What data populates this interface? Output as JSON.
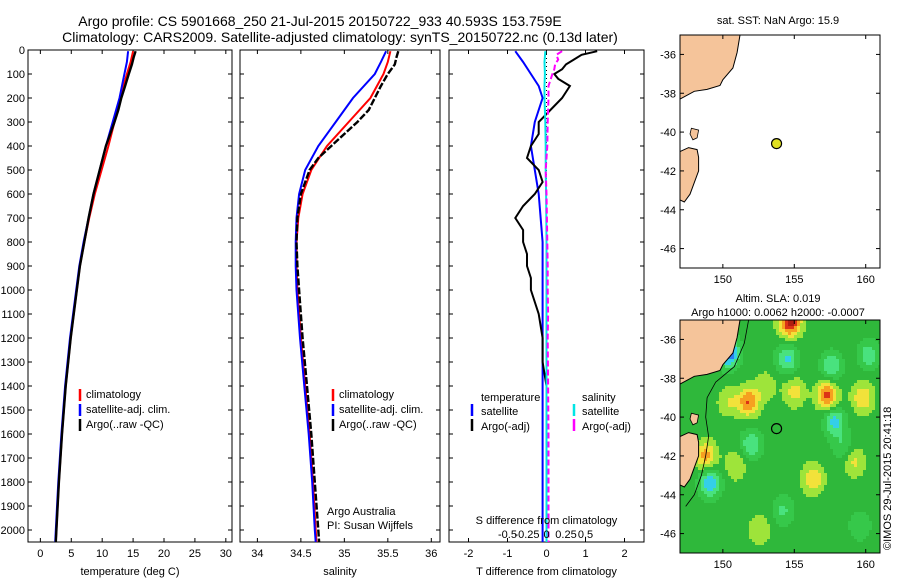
{
  "header": {
    "title_line1": "Argo profile: CS 5901668_250 21-Jul-2015 20150722_933 40.593S 153.759E",
    "title_line2": "Climatology: CARS2009. Satellite-adjusted climatology: synTS_20150722.nc (0.13d later)"
  },
  "copyright": "©IMOS 29-Jul-2015 20:41:18",
  "colors": {
    "climatology": "#ff0000",
    "satellite": "#0000ff",
    "argo": "#000000",
    "sal_satellite": "#00e5e5",
    "sal_argo": "#ff00ff",
    "land": "#f5c49a",
    "map_bg": "#ffffff"
  },
  "chart_data": [
    {
      "type": "line",
      "name": "temperature-profile",
      "xlabel": "temperature (deg C)",
      "xlim": [
        -2,
        31
      ],
      "xticks": [
        0,
        5,
        10,
        15,
        20,
        25,
        30
      ],
      "xtick_labels": [
        "0",
        "5",
        "10",
        "15",
        "20",
        "25",
        "30"
      ],
      "ylim": [
        0,
        2050
      ],
      "yticks": [
        0,
        100,
        200,
        300,
        400,
        500,
        600,
        700,
        800,
        900,
        1000,
        1100,
        1200,
        1300,
        1400,
        1500,
        1600,
        1700,
        1800,
        1900,
        2000
      ],
      "ytick_labels": [
        "0",
        "100",
        "200",
        "300",
        "400",
        "500",
        "600",
        "700",
        "800",
        "900",
        "1000",
        "1100",
        "1200",
        "1300",
        "1400",
        "1500",
        "1600",
        "1700",
        "1800",
        "1900",
        "2000"
      ],
      "legend": [
        "climatology",
        "satellite-adj. clim.",
        "Argo(..raw -QC)"
      ],
      "series": [
        {
          "name": "climatology",
          "color": "#ff0000",
          "depth": [
            5,
            50,
            100,
            200,
            300,
            400,
            500,
            600,
            700,
            800,
            900,
            1000,
            1200,
            1400,
            1600,
            1800,
            2000,
            2050
          ],
          "values": [
            15.0,
            14.6,
            14.0,
            12.9,
            12.0,
            11.0,
            9.9,
            8.8,
            7.9,
            7.1,
            6.4,
            5.9,
            4.9,
            4.1,
            3.5,
            3.0,
            2.6,
            2.5
          ]
        },
        {
          "name": "satellite-adj. clim.",
          "color": "#0000ff",
          "depth": [
            5,
            50,
            100,
            200,
            300,
            400,
            500,
            600,
            700,
            800,
            900,
            1000,
            1200,
            1400,
            1600,
            1800,
            2000,
            2050
          ],
          "values": [
            14.2,
            14.0,
            13.6,
            12.8,
            11.7,
            10.6,
            9.6,
            8.6,
            7.8,
            7.0,
            6.3,
            5.8,
            4.8,
            4.0,
            3.4,
            2.9,
            2.5,
            2.4
          ]
        },
        {
          "name": "Argo(..raw -QC)",
          "color": "#000000",
          "depth": [
            5,
            30,
            60,
            100,
            150,
            200,
            250,
            300,
            350,
            400,
            450,
            500,
            600,
            700,
            800,
            900,
            1000,
            1200,
            1400,
            1600,
            1800,
            2000,
            2050
          ],
          "values": [
            15.4,
            15.1,
            14.8,
            14.3,
            13.7,
            13.1,
            12.6,
            12.0,
            11.3,
            10.6,
            10.1,
            9.6,
            8.6,
            7.8,
            7.1,
            6.4,
            5.9,
            4.9,
            4.1,
            3.5,
            3.0,
            2.6,
            2.5
          ]
        }
      ]
    },
    {
      "type": "line",
      "name": "salinity-profile",
      "xlabel": "salinity",
      "xlim": [
        33.8,
        36.1
      ],
      "xticks": [
        34,
        34.5,
        35,
        35.5,
        36
      ],
      "xtick_labels": [
        "34",
        "34.5",
        "35",
        "35.5",
        "36"
      ],
      "ylim": [
        0,
        2050
      ],
      "legend": [
        "climatology",
        "satellite-adj. clim.",
        "Argo(..raw -QC)"
      ],
      "annotation": [
        "Argo Australia",
        "PI: Susan Wijffels"
      ],
      "series": [
        {
          "name": "climatology",
          "color": "#ff0000",
          "depth": [
            5,
            50,
            100,
            200,
            300,
            400,
            500,
            600,
            700,
            800,
            900,
            1000,
            1200,
            1400,
            1600,
            1800,
            2000,
            2050
          ],
          "values": [
            35.53,
            35.5,
            35.45,
            35.3,
            35.05,
            34.8,
            34.62,
            34.52,
            34.47,
            34.45,
            34.45,
            34.46,
            34.5,
            34.55,
            34.6,
            34.64,
            34.67,
            34.68
          ]
        },
        {
          "name": "satellite-adj. clim.",
          "color": "#0000ff",
          "depth": [
            5,
            50,
            100,
            200,
            300,
            400,
            500,
            600,
            700,
            800,
            900,
            1000,
            1200,
            1400,
            1600,
            1800,
            2000,
            2050
          ],
          "values": [
            35.48,
            35.42,
            35.35,
            35.1,
            34.9,
            34.7,
            34.55,
            34.48,
            34.45,
            34.44,
            34.44,
            34.45,
            34.49,
            34.54,
            34.59,
            34.63,
            34.66,
            34.67
          ]
        },
        {
          "name": "Argo(..raw -QC)",
          "color": "#000000",
          "depth": [
            5,
            30,
            60,
            100,
            150,
            200,
            250,
            300,
            350,
            400,
            450,
            500,
            600,
            700,
            800,
            900,
            1000,
            1200,
            1400,
            1600,
            1800,
            2000,
            2050
          ],
          "values": [
            35.62,
            35.6,
            35.58,
            35.5,
            35.42,
            35.35,
            35.28,
            35.15,
            35.0,
            34.85,
            34.7,
            34.6,
            34.5,
            34.46,
            34.45,
            34.46,
            34.48,
            34.52,
            34.57,
            34.62,
            34.66,
            34.7,
            34.71
          ]
        }
      ]
    },
    {
      "type": "line",
      "name": "difference-profile",
      "xlabel": "T difference from climatology",
      "xlabel_top": "S difference from climatology",
      "xlim": [
        -2.5,
        2.5
      ],
      "xticks": [
        -2,
        -1,
        0,
        1,
        2
      ],
      "xtick_labels": [
        "-2",
        "-1",
        "0",
        "1",
        "2"
      ],
      "xticks_top": [
        -0.5,
        -0.25,
        0,
        0.25,
        0.5
      ],
      "xtick_labels_top": [
        "-0.5",
        "-0.25",
        "0",
        "0.25",
        "0.5"
      ],
      "ylim": [
        0,
        2050
      ],
      "legend_left_title": "temperature",
      "legend_right_title": "salinity",
      "legend_left": [
        "satellite",
        "Argo(-adj)"
      ],
      "legend_right": [
        "satellite",
        "Argo(-adj)"
      ],
      "series": [
        {
          "name": "T satellite",
          "color": "#0000ff",
          "depth": [
            5,
            50,
            100,
            150,
            200,
            300,
            400,
            500,
            600,
            800,
            1000,
            1200,
            1500,
            1800,
            2050
          ],
          "values": [
            -0.8,
            -0.6,
            -0.4,
            -0.2,
            -0.1,
            -0.3,
            -0.4,
            -0.3,
            -0.2,
            -0.1,
            -0.1,
            -0.1,
            -0.1,
            -0.1,
            -0.1
          ]
        },
        {
          "name": "T Argo(-adj)",
          "color": "#000000",
          "depth": [
            5,
            20,
            40,
            60,
            80,
            100,
            120,
            150,
            200,
            250,
            300,
            350,
            400,
            450,
            500,
            550,
            600,
            650,
            700,
            750,
            800,
            850,
            900,
            950,
            1000,
            1100,
            1200,
            1300,
            1400,
            1500,
            1600,
            1800,
            2000,
            2050
          ],
          "values": [
            1.3,
            0.9,
            0.7,
            0.5,
            0.4,
            0.2,
            0.3,
            0.6,
            0.4,
            0.1,
            -0.2,
            -0.2,
            -0.4,
            -0.5,
            -0.2,
            -0.1,
            -0.3,
            -0.6,
            -0.8,
            -0.6,
            -0.6,
            -0.5,
            -0.5,
            -0.4,
            -0.4,
            -0.2,
            -0.1,
            -0.1,
            0,
            0,
            0,
            0,
            0,
            0
          ]
        },
        {
          "name": "S satellite",
          "color": "#00e5e5",
          "depth": [
            5,
            50,
            100,
            150,
            200,
            300,
            400,
            500,
            600,
            800,
            1000,
            1200,
            1500,
            1800,
            2050
          ],
          "values": [
            -0.03,
            -0.05,
            -0.04,
            -0.05,
            -0.05,
            -0.03,
            -0.02,
            -0.02,
            -0.01,
            0,
            0,
            0,
            0,
            0,
            0
          ]
        },
        {
          "name": "S Argo(-adj)",
          "color": "#ff00ff",
          "depth": [
            5,
            20,
            40,
            60,
            80,
            100,
            150,
            200,
            250,
            300,
            400,
            500,
            600,
            700,
            800,
            900,
            1000,
            1100,
            1200,
            1400,
            1600,
            1800,
            2000,
            2050
          ],
          "values": [
            0.4,
            0.25,
            0.3,
            0.22,
            0.2,
            0.15,
            0.05,
            0.05,
            0.04,
            0.03,
            0.02,
            -0.02,
            0,
            0.01,
            0.02,
            0.03,
            0.03,
            0.04,
            0.03,
            0.04,
            0.05,
            0.05,
            0.05,
            0.05
          ]
        }
      ]
    },
    {
      "type": "scatter",
      "name": "location-map",
      "title": "sat. SST: NaN Argo: 15.9",
      "xlim": [
        147,
        161
      ],
      "ylim": [
        -47,
        -35
      ],
      "xticks": [
        150,
        155,
        160
      ],
      "xtick_labels": [
        "150",
        "155",
        "160"
      ],
      "yticks": [
        -36,
        -38,
        -40,
        -42,
        -44,
        -46
      ],
      "ytick_labels": [
        "-36",
        "-38",
        "-40",
        "-42",
        "-44",
        "-46"
      ],
      "points": [
        {
          "lon": 153.759,
          "lat": -40.593,
          "color": "#e0e022"
        }
      ]
    },
    {
      "type": "heatmap",
      "name": "sla-map",
      "title_line1": "Altim. SLA: 0.019",
      "title_line2": "Argo h1000: 0.0062 h2000: -0.0007",
      "xlim": [
        147,
        161
      ],
      "ylim": [
        -47,
        -35
      ],
      "xticks": [
        150,
        155,
        160
      ],
      "xtick_labels": [
        "150",
        "155",
        "160"
      ],
      "yticks": [
        -36,
        -38,
        -40,
        -42,
        -44,
        -46
      ],
      "ytick_labels": [
        "-36",
        "-38",
        "-40",
        "-42",
        "-44",
        "-46"
      ],
      "points": [
        {
          "lon": 153.759,
          "lat": -40.593
        }
      ],
      "blobs": [
        {
          "lon": 150.4,
          "lat": -36.7,
          "v": -0.9
        },
        {
          "lon": 151.8,
          "lat": -39.2,
          "v": 0.7
        },
        {
          "lon": 150.4,
          "lat": -39.2,
          "v": 0.3
        },
        {
          "lon": 152.0,
          "lat": -41.4,
          "v": -0.5
        },
        {
          "lon": 148.8,
          "lat": -42.0,
          "v": 0.6
        },
        {
          "lon": 150.9,
          "lat": -42.5,
          "v": 0.3
        },
        {
          "lon": 149.1,
          "lat": -43.4,
          "v": -0.7
        },
        {
          "lon": 154.5,
          "lat": -37.0,
          "v": -0.55
        },
        {
          "lon": 154.7,
          "lat": -35.1,
          "v": 1.0
        },
        {
          "lon": 155.0,
          "lat": -38.7,
          "v": 0.4
        },
        {
          "lon": 157.3,
          "lat": -38.9,
          "v": 0.8
        },
        {
          "lon": 157.6,
          "lat": -37.4,
          "v": -0.5
        },
        {
          "lon": 157.8,
          "lat": -40.2,
          "v": -0.6
        },
        {
          "lon": 156.3,
          "lat": -43.2,
          "v": 0.5
        },
        {
          "lon": 159.2,
          "lat": -42.3,
          "v": 0.35
        },
        {
          "lon": 159.8,
          "lat": -39.0,
          "v": 0.5
        },
        {
          "lon": 160.2,
          "lat": -36.8,
          "v": -0.45
        },
        {
          "lon": 154.2,
          "lat": -44.8,
          "v": -0.35
        },
        {
          "lon": 159.6,
          "lat": -45.6,
          "v": -0.3
        },
        {
          "lon": 158.4,
          "lat": -41.5,
          "v": -0.3
        },
        {
          "lon": 153.0,
          "lat": -38.4,
          "v": 0.25
        },
        {
          "lon": 152.6,
          "lat": -45.8,
          "v": 0.3
        }
      ]
    }
  ]
}
